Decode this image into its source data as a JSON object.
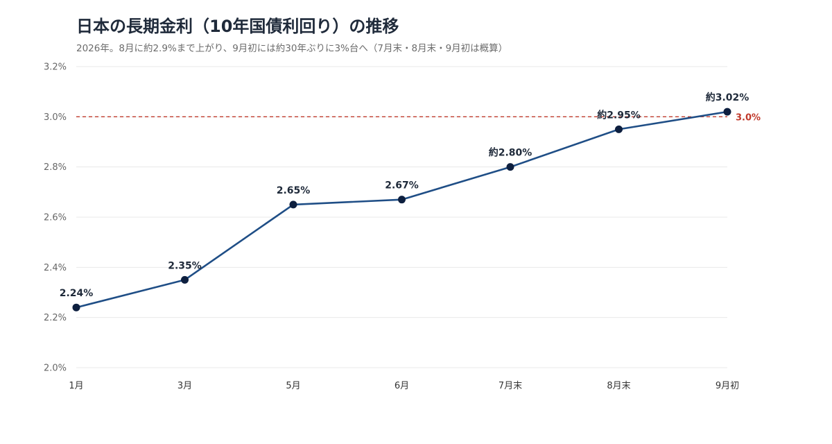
{
  "title": "日本の長期金利（10年国債利回り）の推移",
  "subtitle": "2026年。8月に約2.9%まで上がり、9月初には約30年ぶりに3%台へ（7月末・8月末・9月初は概算）",
  "chart_data": {
    "type": "line",
    "categories": [
      "1月",
      "3月",
      "5月",
      "6月",
      "7月末",
      "8月末",
      "9月初"
    ],
    "series": [
      {
        "values": [
          2.24,
          2.35,
          2.65,
          2.67,
          2.8,
          2.95,
          3.02
        ],
        "data_labels": [
          "2.24%",
          "2.35%",
          "2.65%",
          "2.67%",
          "約2.80%",
          "約2.95%",
          "約3.02%"
        ]
      }
    ],
    "ylim": [
      2.0,
      3.2
    ],
    "yticks": [
      2.0,
      2.2,
      2.4,
      2.6,
      2.8,
      3.0,
      3.2
    ],
    "ytick_labels": [
      "2.0%",
      "2.2%",
      "2.4%",
      "2.6%",
      "2.8%",
      "3.0%",
      "3.2%"
    ],
    "grid": true,
    "reference_line": {
      "value": 3.0,
      "label": "3.0%",
      "style": "dashed"
    },
    "colors": {
      "line": "#1f4e86",
      "marker": "#0d1f3f",
      "reference": "#c0392b",
      "grid": "#e8e8e8"
    }
  }
}
